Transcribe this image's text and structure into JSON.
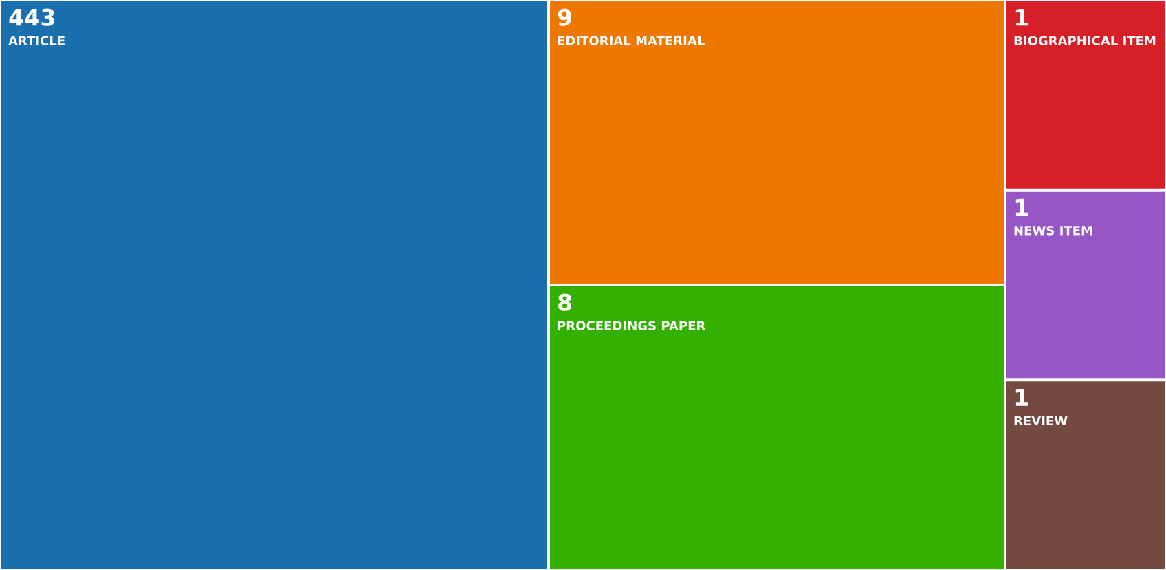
{
  "chart_data": {
    "type": "other",
    "categories": [
      "ARTICLE",
      "EDITORIAL MATERIAL",
      "PROCEEDINGS PAPER",
      "BIOGRAPHICAL ITEM",
      "NEWS ITEM",
      "REVIEW"
    ],
    "values": [
      443,
      9,
      8,
      1,
      1,
      1
    ],
    "data_labels": true,
    "colors": [
      "#1a6faf",
      "#ee7700",
      "#33b000",
      "#d61f26",
      "#9656c6",
      "#744a40"
    ]
  }
}
